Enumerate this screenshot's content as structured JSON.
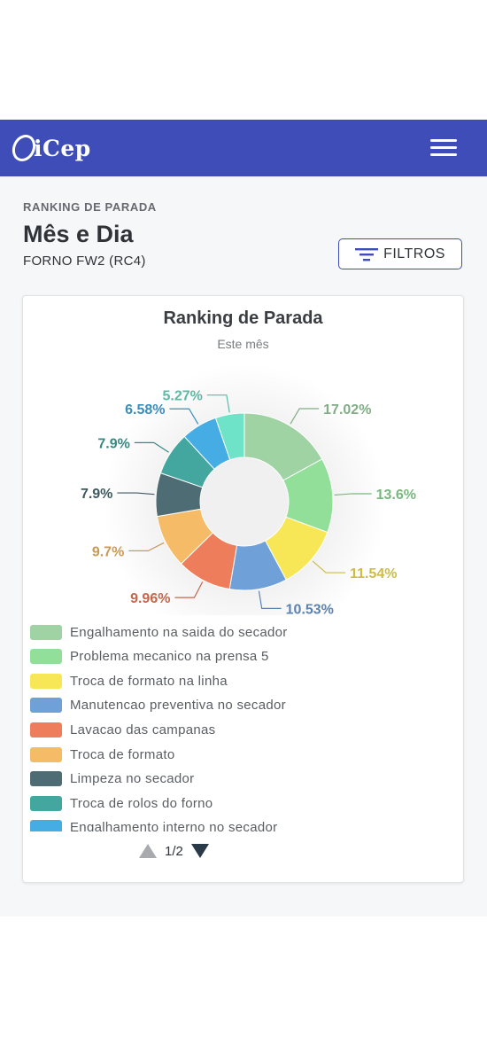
{
  "navbar": {
    "logo_text": "iCep",
    "background": "#3e4db8"
  },
  "header": {
    "eyebrow": "RANKING DE PARADA",
    "title": "Mês e Dia",
    "subtitle": "FORNO FW2 (RC4)",
    "filter_label": "FILTROS"
  },
  "chart_data": {
    "type": "pie",
    "title": "Ranking de Parada",
    "subtitle": "Este mês",
    "donut": true,
    "legend_position": "bottom",
    "slices": [
      {
        "label": "Engalhamento na saida do secador",
        "value": 17.02,
        "display": "17.02%",
        "color": "#9fd3a4"
      },
      {
        "label": "Problema mecanico na prensa 5",
        "value": 13.6,
        "display": "13.6%",
        "color": "#92df9a"
      },
      {
        "label": "Troca de formato na linha",
        "value": 11.54,
        "display": "11.54%",
        "color": "#f7e756"
      },
      {
        "label": "Manutencao preventiva no secador",
        "value": 10.53,
        "display": "10.53%",
        "color": "#6fa0d8"
      },
      {
        "label": "Lavacao das campanas",
        "value": 9.96,
        "display": "9.96%",
        "color": "#ee7d5c"
      },
      {
        "label": "Troca de formato",
        "value": 9.7,
        "display": "9.7%",
        "color": "#f6bb66"
      },
      {
        "label": "Limpeza no secador",
        "value": 7.9,
        "display": "7.9%",
        "color": "#4d6c74"
      },
      {
        "label": "Troca de rolos do forno",
        "value": 7.9,
        "display": "7.9%",
        "color": "#43a7a0"
      },
      {
        "label": "Engalhamento interno no secador",
        "value": 6.58,
        "display": "6.58%",
        "color": "#45ade3"
      },
      {
        "label": "",
        "value": 5.27,
        "display": "5.27%",
        "color": "#6fe3c7"
      }
    ]
  },
  "pager": {
    "label": "1/2"
  }
}
